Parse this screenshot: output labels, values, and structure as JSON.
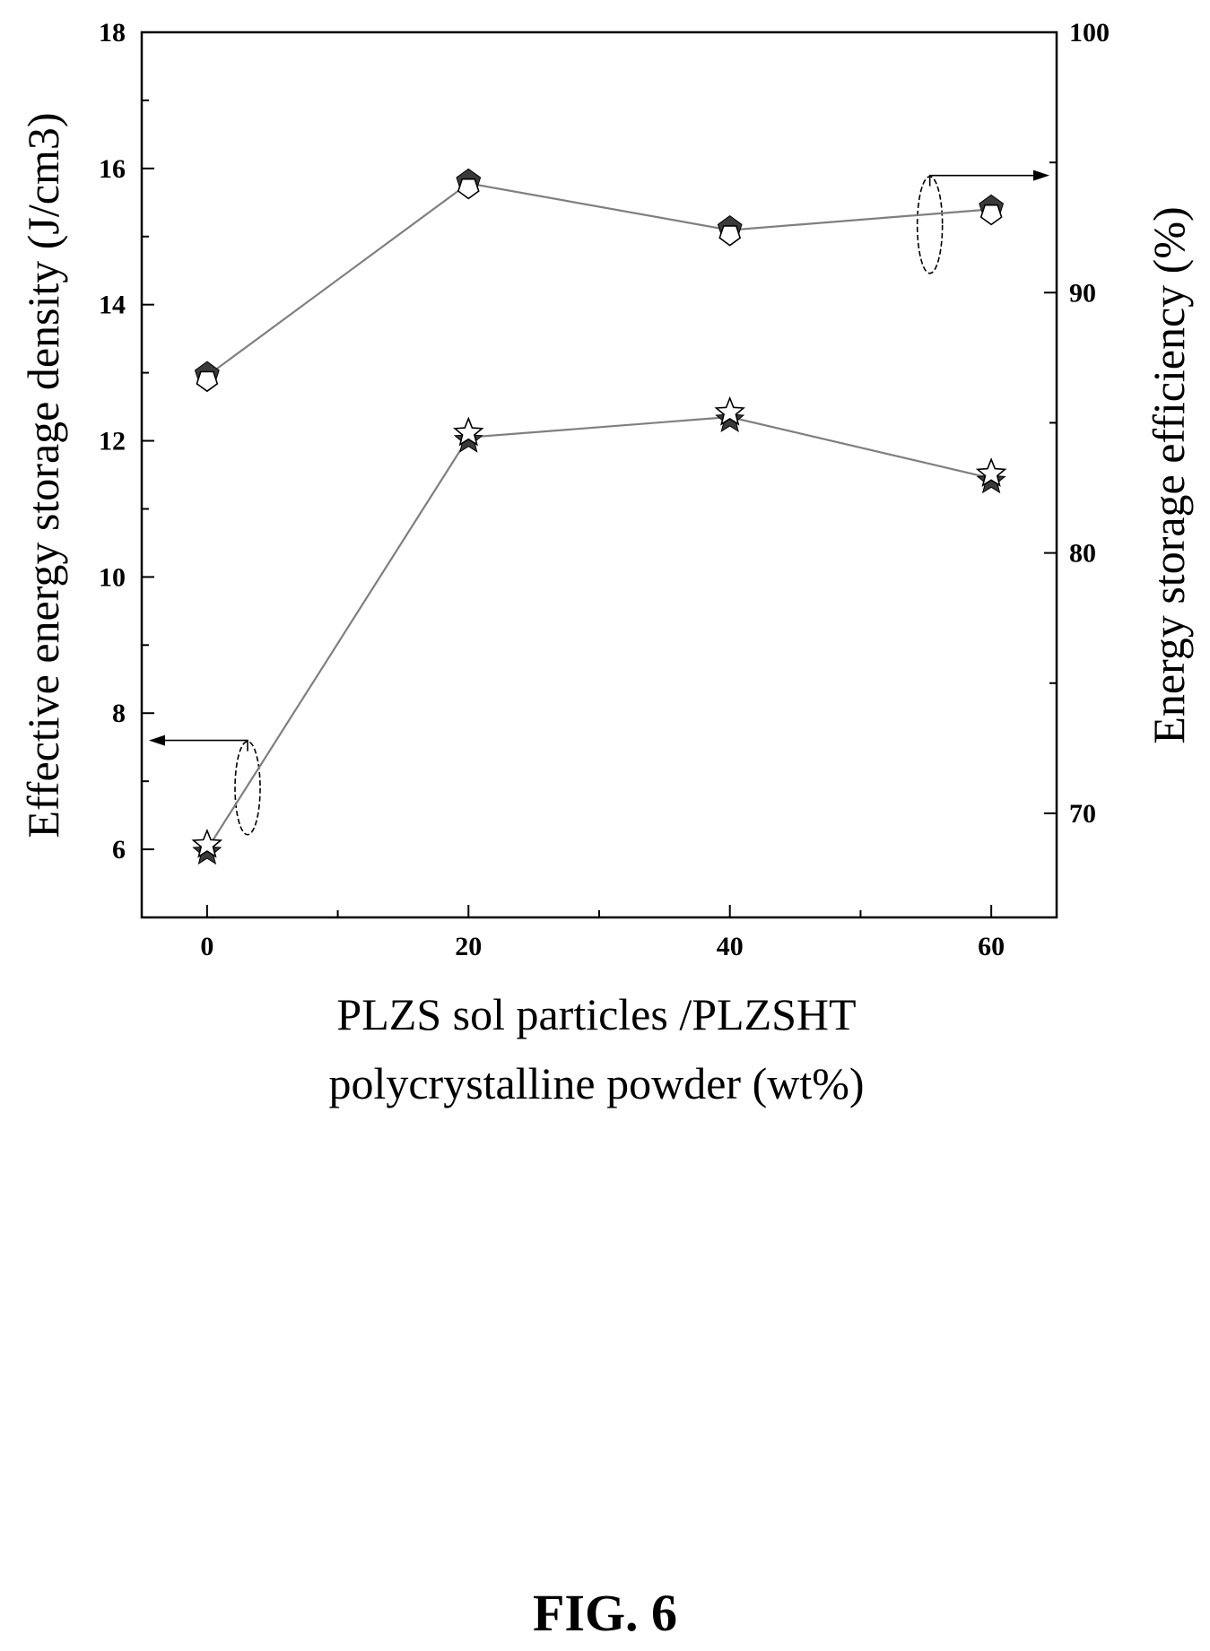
{
  "figure": {
    "caption": "FIG. 6"
  },
  "chart_data": {
    "type": "line",
    "title": "",
    "xlabel_lines": [
      "PLZS sol particles /PLZSHT",
      "polycrystalline powder (wt%)"
    ],
    "ylabel_left": "Effective energy storage density (J/cm3)",
    "ylabel_right": "Energy storage efficiency (%)",
    "x": [
      0,
      20,
      40,
      60
    ],
    "x_ticks": [
      0,
      20,
      40,
      60
    ],
    "xlim": [
      -5,
      65
    ],
    "y_left_ticks": [
      6,
      8,
      10,
      12,
      14,
      16,
      18
    ],
    "ylim_left": [
      5,
      18
    ],
    "y_right_ticks": [
      70,
      80,
      90,
      100
    ],
    "ylim_right": [
      66,
      100
    ],
    "grid": false,
    "legend": "none",
    "series": [
      {
        "axis": "right",
        "marker": "pentagon",
        "values": [
          86.8,
          94.2,
          92.4,
          93.2
        ]
      },
      {
        "axis": "left",
        "marker": "star",
        "values": [
          6.0,
          12.05,
          12.35,
          11.45
        ]
      }
    ],
    "colors": {
      "line": "#7f7f7f",
      "marker_fill": "#3a3a3a",
      "axis": "#000000"
    }
  }
}
